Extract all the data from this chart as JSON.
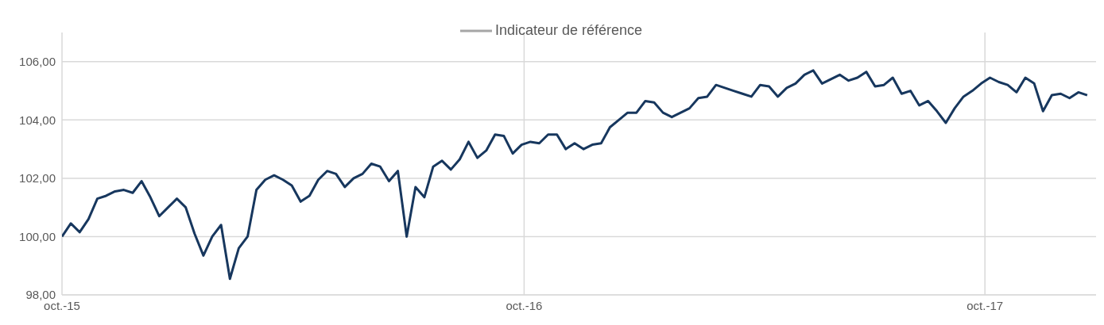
{
  "chart_data": {
    "type": "line",
    "x": [
      "2015-10-01",
      "2015-10-08",
      "2015-10-15",
      "2015-10-22",
      "2015-10-29",
      "2015-11-05",
      "2015-11-12",
      "2015-11-19",
      "2015-11-26",
      "2015-12-03",
      "2015-12-10",
      "2015-12-17",
      "2015-12-24",
      "2015-12-31",
      "2016-01-07",
      "2016-01-14",
      "2016-01-21",
      "2016-01-28",
      "2016-02-04",
      "2016-02-11",
      "2016-02-18",
      "2016-02-25",
      "2016-03-03",
      "2016-03-10",
      "2016-03-17",
      "2016-03-24",
      "2016-03-31",
      "2016-04-07",
      "2016-04-14",
      "2016-04-21",
      "2016-04-28",
      "2016-05-05",
      "2016-05-12",
      "2016-05-19",
      "2016-05-26",
      "2016-06-02",
      "2016-06-09",
      "2016-06-16",
      "2016-06-23",
      "2016-06-30",
      "2016-07-07",
      "2016-07-14",
      "2016-07-21",
      "2016-07-28",
      "2016-08-04",
      "2016-08-11",
      "2016-08-18",
      "2016-08-25",
      "2016-09-01",
      "2016-09-08",
      "2016-09-15",
      "2016-09-22",
      "2016-09-29",
      "2016-10-06",
      "2016-10-13",
      "2016-10-20",
      "2016-10-27",
      "2016-11-03",
      "2016-11-10",
      "2016-11-17",
      "2016-11-24",
      "2016-12-01",
      "2016-12-08",
      "2016-12-15",
      "2016-12-22",
      "2016-12-29",
      "2017-01-05",
      "2017-01-12",
      "2017-01-19",
      "2017-01-26",
      "2017-02-02",
      "2017-02-09",
      "2017-02-16",
      "2017-02-23",
      "2017-03-02",
      "2017-03-09",
      "2017-03-16",
      "2017-03-23",
      "2017-03-30",
      "2017-04-06",
      "2017-04-13",
      "2017-04-20",
      "2017-04-27",
      "2017-05-04",
      "2017-05-11",
      "2017-05-18",
      "2017-05-25",
      "2017-06-01",
      "2017-06-08",
      "2017-06-15",
      "2017-06-22",
      "2017-06-29",
      "2017-07-06",
      "2017-07-13",
      "2017-07-20",
      "2017-07-27",
      "2017-08-03",
      "2017-08-10",
      "2017-08-17",
      "2017-08-24",
      "2017-08-31",
      "2017-09-07",
      "2017-09-14",
      "2017-09-21",
      "2017-09-28",
      "2017-10-05",
      "2017-10-12",
      "2017-10-19",
      "2017-10-26",
      "2017-11-02",
      "2017-11-09",
      "2017-11-16",
      "2017-11-23",
      "2017-11-30",
      "2017-12-07",
      "2017-12-14",
      "2017-12-21"
    ],
    "series": [
      {
        "color": "#17375e",
        "values": [
          100.0,
          100.45,
          100.15,
          100.6,
          101.3,
          101.4,
          101.55,
          101.6,
          101.5,
          101.9,
          101.35,
          100.7,
          101.0,
          101.3,
          101.0,
          100.1,
          99.35,
          100.0,
          100.4,
          98.55,
          99.6,
          100.0,
          101.6,
          101.95,
          102.1,
          101.95,
          101.75,
          101.2,
          101.4,
          101.95,
          102.25,
          102.15,
          101.7,
          102.0,
          102.15,
          102.5,
          102.4,
          101.9,
          102.25,
          100.0,
          101.7,
          101.35,
          102.4,
          102.6,
          102.3,
          102.65,
          103.25,
          102.7,
          102.95,
          103.5,
          103.45,
          102.85,
          103.15,
          103.25,
          103.2,
          103.5,
          103.5,
          103.0,
          103.2,
          103.0,
          103.15,
          103.2,
          103.75,
          104.0,
          104.25,
          104.25,
          104.65,
          104.6,
          104.25,
          104.1,
          104.25,
          104.4,
          104.75,
          104.8,
          105.2,
          105.1,
          105.0,
          104.9,
          104.8,
          105.2,
          105.15,
          104.8,
          105.1,
          105.25,
          105.55,
          105.7,
          105.25,
          105.4,
          105.55,
          105.35,
          105.45,
          105.65,
          105.15,
          105.2,
          105.45,
          104.9,
          105.0,
          104.5,
          104.65,
          104.3,
          103.9,
          104.4,
          104.8,
          105.0,
          105.25,
          105.45,
          105.3,
          105.2,
          104.95,
          105.45,
          105.25,
          104.3,
          104.85,
          104.9,
          104.75,
          104.95,
          104.85
        ]
      },
      {
        "name": "Indicateur de référence",
        "color": "#a6a6a6",
        "values": [
          null,
          null,
          null,
          null,
          null,
          null,
          null,
          null,
          null,
          null,
          null,
          null,
          null,
          null,
          null,
          null,
          null,
          null,
          null,
          null,
          null,
          null,
          null,
          null,
          null,
          null,
          null,
          null,
          null,
          null,
          null,
          null,
          null,
          null,
          null,
          null,
          null,
          null,
          null,
          null,
          null,
          null,
          null,
          null,
          null,
          null,
          null,
          null,
          null,
          null,
          null,
          null,
          null,
          null,
          null,
          null,
          null,
          null,
          null,
          null,
          null,
          null,
          null,
          null,
          null,
          null,
          null,
          null,
          null,
          null,
          null,
          null,
          null,
          null,
          null,
          null,
          null,
          null,
          null,
          null,
          null,
          null,
          null,
          null,
          null,
          null,
          null,
          null,
          null,
          null,
          null,
          null,
          null,
          null,
          null,
          null,
          null,
          null,
          null,
          null,
          null,
          null,
          null,
          null,
          null,
          null,
          null,
          null,
          null,
          null,
          null,
          null,
          null,
          null,
          null,
          null,
          null
        ]
      }
    ],
    "xlim": [
      "2015-10-01",
      "2017-12-28"
    ],
    "xticks": [
      {
        "value": "2015-10-01",
        "label": "oct.-15"
      },
      {
        "value": "2016-10-01",
        "label": "oct.-16"
      },
      {
        "value": "2017-10-01",
        "label": "oct.-17"
      }
    ],
    "ylim": [
      98,
      107
    ],
    "yticks": [
      {
        "value": 98,
        "label": "98,00"
      },
      {
        "value": 100,
        "label": "100,00"
      },
      {
        "value": 102,
        "label": "102,00"
      },
      {
        "value": 104,
        "label": "104,00"
      },
      {
        "value": 106,
        "label": "106,00"
      }
    ],
    "grid": true,
    "legend": "top",
    "marker": "none",
    "line_style": "solid"
  }
}
